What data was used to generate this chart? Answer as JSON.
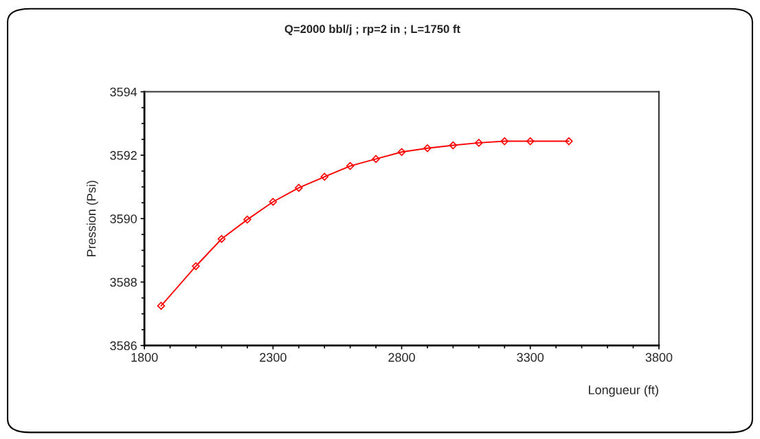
{
  "chart_data": {
    "type": "line",
    "title": "Q=2000 bbl/j ; rp=2 in ; L=1750 ft",
    "xlabel": "Longueur (ft)",
    "ylabel": "Pression (Psi)",
    "x": [
      1865,
      2000,
      2100,
      2200,
      2300,
      2400,
      2500,
      2600,
      2700,
      2800,
      2900,
      3000,
      3100,
      3200,
      3300,
      3450
    ],
    "series": [
      {
        "color": "#ff0000",
        "values": [
          3587.25,
          3588.5,
          3589.36,
          3589.97,
          3590.53,
          3590.97,
          3591.32,
          3591.66,
          3591.88,
          3592.1,
          3592.22,
          3592.31,
          3592.39,
          3592.44,
          3592.44,
          3592.44
        ]
      }
    ],
    "xlim": [
      1800,
      3800
    ],
    "xticks": [
      1800,
      2300,
      2800,
      3300,
      3800
    ],
    "ylim": [
      3586,
      3594
    ],
    "yticks": [
      3586,
      3588,
      3590,
      3592,
      3594
    ],
    "marker": "diamond",
    "line_style": "solid",
    "grid": false,
    "legend": false
  }
}
